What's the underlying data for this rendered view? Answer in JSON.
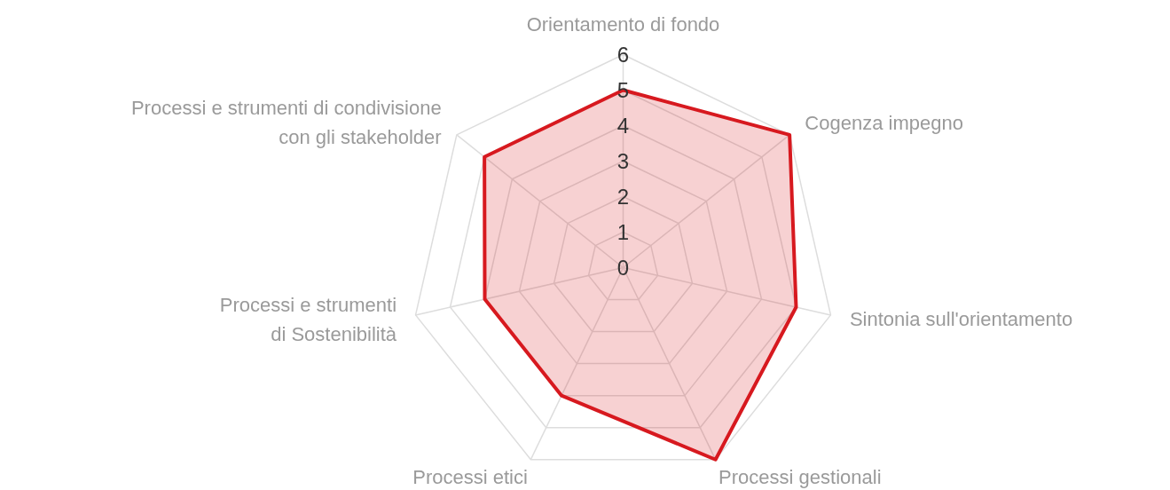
{
  "chart_data": {
    "type": "radar",
    "categories": [
      "Orientamento di fondo",
      "Cogenza impegno",
      "Sintonia sull'orientamento",
      "Processi gestionali",
      "Processi etici",
      "Processi e strumenti\ndi Sostenibilità",
      "Processi e strumenti di condivisione\ncon gli stakeholder"
    ],
    "series": [
      {
        "color": "#d7191f",
        "values": [
          5,
          6,
          5,
          6,
          4,
          4,
          5
        ]
      }
    ],
    "ylim": [
      0,
      6
    ],
    "yticks": [
      0,
      1,
      2,
      3,
      4,
      5,
      6
    ],
    "grid": true
  }
}
